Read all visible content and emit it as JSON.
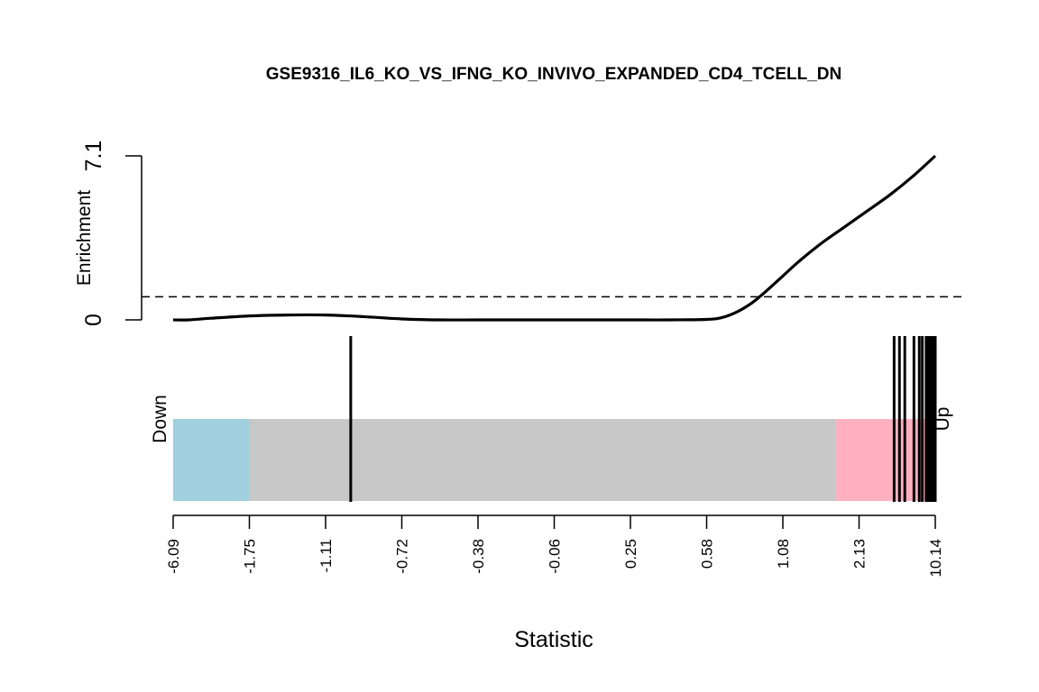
{
  "chart_data": {
    "type": "barcode",
    "title": "GSE9316_IL6_KO_VS_IFNG_KO_INVIVO_EXPANDED_CD4_TCELL_DN",
    "xlabel": "Statistic",
    "enrichment": {
      "ylabel": "Enrichment",
      "ylim": [
        0,
        7.1
      ],
      "y_tick_labels": [
        "0",
        "7.1"
      ],
      "reference_line": 1.0,
      "curve": {
        "x": [
          0,
          0.02,
          0.05,
          0.1,
          0.15,
          0.2,
          0.25,
          0.3,
          0.35,
          0.4,
          0.45,
          0.5,
          0.55,
          0.6,
          0.65,
          0.7,
          0.72,
          0.74,
          0.76,
          0.78,
          0.8,
          0.82,
          0.85,
          0.88,
          0.91,
          0.94,
          0.97,
          1.0
        ],
        "y": [
          0,
          0,
          0.07,
          0.17,
          0.21,
          0.21,
          0.14,
          0.04,
          0,
          0,
          0,
          0,
          0,
          0,
          0,
          0.02,
          0.1,
          0.35,
          0.75,
          1.3,
          1.9,
          2.5,
          3.3,
          4.0,
          4.7,
          5.4,
          6.2,
          7.1
        ]
      }
    },
    "statistic_ticks": [
      "-6.09",
      "-1.75",
      "-1.11",
      "-0.72",
      "-0.38",
      "-0.06",
      "0.25",
      "0.58",
      "1.08",
      "2.13",
      "10.14"
    ],
    "regions": [
      {
        "label": "Down",
        "from": 0.0,
        "to": 0.1,
        "color": "#A0D0E0"
      },
      {
        "label": "",
        "from": 0.1,
        "to": 0.87,
        "color": "#C8C8C8"
      },
      {
        "label": "Up",
        "from": 0.87,
        "to": 1.0,
        "color": "#FFB0C0"
      }
    ],
    "gene_positions": [
      0.233,
      0.946,
      0.953,
      0.96,
      0.972,
      0.979,
      0.983,
      0.988,
      0.991,
      0.993,
      0.995,
      0.997,
      0.998,
      0.999,
      1.0
    ]
  }
}
